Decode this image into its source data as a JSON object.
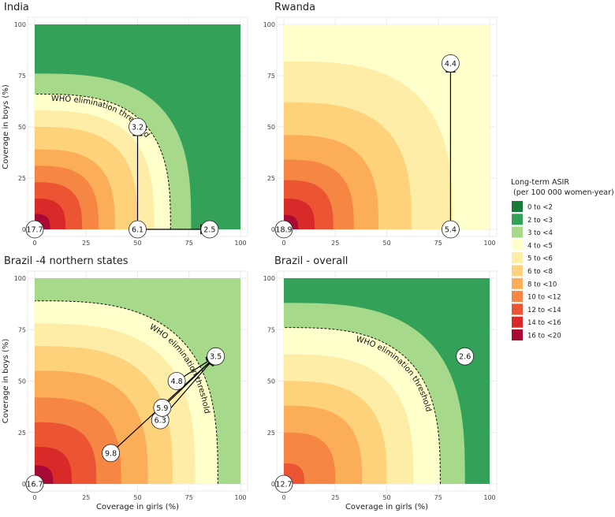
{
  "chart_data": {
    "type": "heatmap",
    "x_label": "Coverage in girls (%)",
    "y_label": "Coverage in boys (%)",
    "x_ticks": [
      0,
      25,
      50,
      75,
      100
    ],
    "y_ticks": [
      0,
      25,
      50,
      75,
      100
    ],
    "xlim": [
      0,
      100
    ],
    "ylim": [
      0,
      100
    ],
    "threshold_label": "WHO elimination threshold",
    "threshold_value": 4,
    "legend": {
      "title_line1": "Long-term ASIR",
      "title_line2": "(per 100 000 women-year)",
      "items": [
        {
          "label": "0 to <2",
          "color": "#1a7a3a"
        },
        {
          "label": "2 to <3",
          "color": "#33a157"
        },
        {
          "label": "3 to <4",
          "color": "#a6d98a"
        },
        {
          "label": "4 to <5",
          "color": "#ffffcc"
        },
        {
          "label": "5 to <6",
          "color": "#fdeda6"
        },
        {
          "label": "6 to <8",
          "color": "#fdd27a"
        },
        {
          "label": "8 to <10",
          "color": "#fbad57"
        },
        {
          "label": "10 to <12",
          "color": "#f58643"
        },
        {
          "label": "12 to <14",
          "color": "#ec5533"
        },
        {
          "label": "14 to <16",
          "color": "#d92a2a"
        },
        {
          "label": "16 to <20",
          "color": "#a80a35"
        }
      ]
    },
    "panels": [
      {
        "id": "india",
        "title": "India",
        "show_y_label": true,
        "show_x_label": false,
        "bands": [
          {
            "color": "#a80a35",
            "r": 7.5
          },
          {
            "color": "#d92a2a",
            "r": 15
          },
          {
            "color": "#ec5533",
            "r": 23
          },
          {
            "color": "#f58643",
            "r": 31
          },
          {
            "color": "#fbad57",
            "r": 39
          },
          {
            "color": "#fdd27a",
            "r": 50
          },
          {
            "color": "#fdeda6",
            "r": 58
          },
          {
            "color": "#ffffcc",
            "r": 66
          },
          {
            "color": "#a6d98a",
            "r": 76
          },
          {
            "color": "#33a157",
            "r": 999
          }
        ],
        "bands_p": 3,
        "threshold": {
          "r": 66,
          "label_at": 0.32
        },
        "points": [
          {
            "x": 0,
            "y": 0,
            "label": "17.7"
          },
          {
            "x": 50,
            "y": 0,
            "label": "6.1"
          },
          {
            "x": 50,
            "y": 50,
            "label": "3.2"
          },
          {
            "x": 85,
            "y": 0,
            "label": "2.5"
          }
        ],
        "arrows": [
          {
            "from": [
              50,
              0
            ],
            "to": [
              50,
              50
            ]
          },
          {
            "from": [
              50,
              0
            ],
            "to": [
              85,
              0
            ]
          }
        ]
      },
      {
        "id": "rwanda",
        "title": "Rwanda",
        "show_y_label": false,
        "show_x_label": false,
        "bands": [
          {
            "color": "#a80a35",
            "r": 7
          },
          {
            "color": "#d92a2a",
            "r": 15
          },
          {
            "color": "#ec5533",
            "r": 24
          },
          {
            "color": "#f58643",
            "r": 34
          },
          {
            "color": "#fbad57",
            "r": 46
          },
          {
            "color": "#fdd27a",
            "r": 62
          },
          {
            "color": "#fdeda6",
            "r": 82
          },
          {
            "color": "#ffffcc",
            "r": 999
          }
        ],
        "bands_p": 3,
        "threshold": null,
        "points": [
          {
            "x": 0,
            "y": 0,
            "label": "18.9"
          },
          {
            "x": 81,
            "y": 0,
            "label": "5.4"
          },
          {
            "x": 81,
            "y": 81,
            "label": "4.4"
          }
        ],
        "arrows": [
          {
            "from": [
              81,
              0
            ],
            "to": [
              81,
              81
            ]
          }
        ]
      },
      {
        "id": "brazil-north",
        "title": "Brazil -4 northern states",
        "show_y_label": true,
        "show_x_label": true,
        "bands": [
          {
            "color": "#a80a35",
            "r": 9
          },
          {
            "color": "#d92a2a",
            "r": 18
          },
          {
            "color": "#ec5533",
            "r": 30
          },
          {
            "color": "#f58643",
            "r": 42
          },
          {
            "color": "#fbad57",
            "r": 55
          },
          {
            "color": "#fdd27a",
            "r": 67
          },
          {
            "color": "#fdeda6",
            "r": 78
          },
          {
            "color": "#ffffcc",
            "r": 89
          },
          {
            "color": "#a6d98a",
            "r": 999
          }
        ],
        "bands_p": 3,
        "threshold": {
          "r": 89,
          "label_at": 0.58
        },
        "points": [
          {
            "x": 0,
            "y": 0,
            "label": "16.7"
          },
          {
            "x": 37,
            "y": 15,
            "label": "9.8"
          },
          {
            "x": 61,
            "y": 31,
            "label": "6.3"
          },
          {
            "x": 62,
            "y": 37,
            "label": "5.9"
          },
          {
            "x": 69,
            "y": 50,
            "label": "4.8"
          },
          {
            "x": 88,
            "y": 62,
            "label": "3.5"
          }
        ],
        "arrows": [
          {
            "from": [
              37,
              15
            ],
            "to": [
              88,
              62
            ]
          },
          {
            "from": [
              61,
              31
            ],
            "to": [
              88,
              62
            ]
          },
          {
            "from": [
              62,
              37
            ],
            "to": [
              88,
              62
            ]
          },
          {
            "from": [
              69,
              50
            ],
            "to": [
              88,
              62
            ]
          }
        ]
      },
      {
        "id": "brazil-overall",
        "title": "Brazil - overall",
        "show_y_label": false,
        "show_x_label": true,
        "bands": [
          {
            "color": "#ec5533",
            "r": 10
          },
          {
            "color": "#f58643",
            "r": 25
          },
          {
            "color": "#fbad57",
            "r": 38
          },
          {
            "color": "#fdd27a",
            "r": 50
          },
          {
            "color": "#fdeda6",
            "r": 63
          },
          {
            "color": "#ffffcc",
            "r": 76
          },
          {
            "color": "#a6d98a",
            "r": 88
          },
          {
            "color": "#33a157",
            "r": 999
          }
        ],
        "bands_p": 3,
        "threshold": {
          "r": 76,
          "label_at": 0.5
        },
        "points": [
          {
            "x": 0,
            "y": 0,
            "label": "12.7"
          },
          {
            "x": 88,
            "y": 62,
            "label": "2.6"
          }
        ],
        "arrows": []
      }
    ]
  }
}
